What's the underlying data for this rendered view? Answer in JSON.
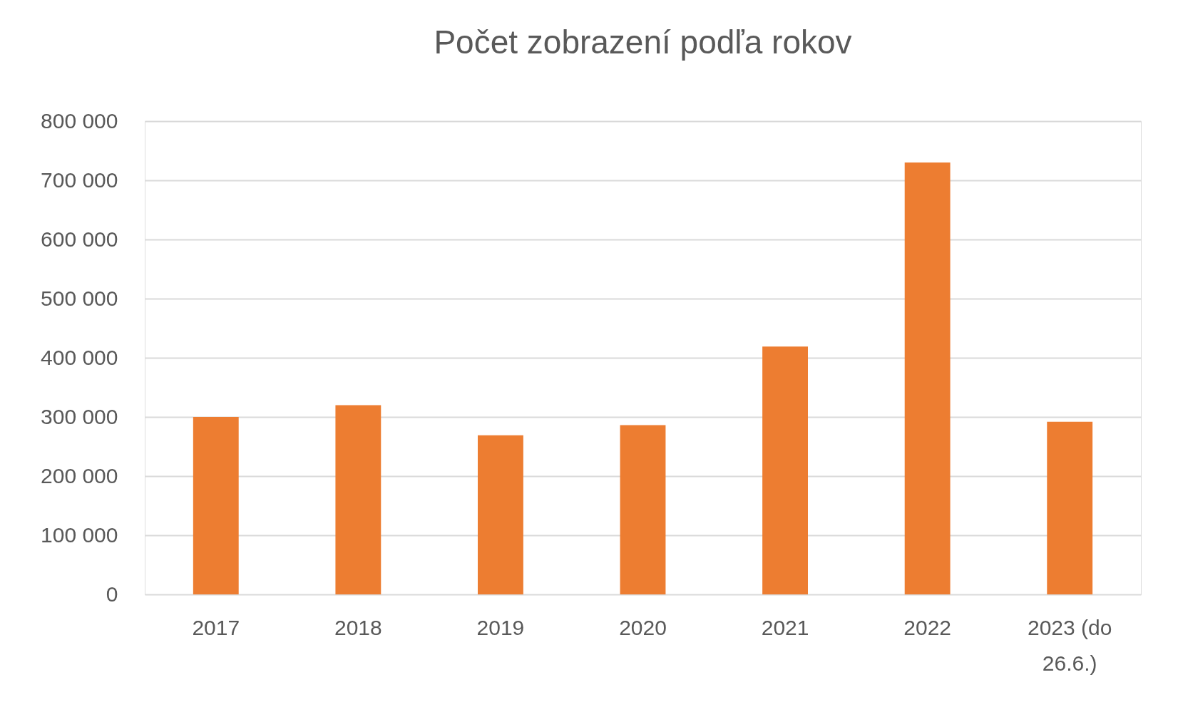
{
  "chart_data": {
    "type": "bar",
    "title": "Počet zobrazení podľa rokov",
    "categories": [
      "2017",
      "2018",
      "2019",
      "2020",
      "2021",
      "2022",
      "2023 (do 26.6.)"
    ],
    "values": [
      300000,
      320000,
      269000,
      286000,
      419000,
      730000,
      292000
    ],
    "color": "#ed7d31",
    "ylim": [
      0,
      800000
    ],
    "yticks": [
      {
        "value": 0,
        "label": "0"
      },
      {
        "value": 100000,
        "label": "100 000"
      },
      {
        "value": 200000,
        "label": "200 000"
      },
      {
        "value": 300000,
        "label": "300 000"
      },
      {
        "value": 400000,
        "label": "400 000"
      },
      {
        "value": 500000,
        "label": "500 000"
      },
      {
        "value": 600000,
        "label": "600 000"
      },
      {
        "value": 700000,
        "label": "700 000"
      },
      {
        "value": 800000,
        "label": "800 000"
      }
    ],
    "grid": "y"
  }
}
